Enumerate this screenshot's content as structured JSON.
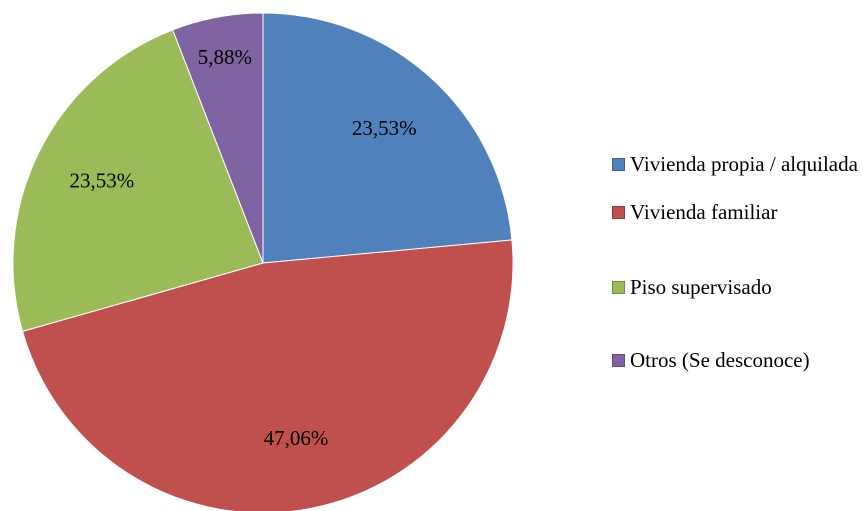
{
  "chart_data": {
    "type": "pie",
    "categories": [
      "Vivienda propia / alquilada",
      "Vivienda familiar",
      "Piso supervisado",
      "Otros (Se desconoce)"
    ],
    "values": [
      23.53,
      47.06,
      23.53,
      5.88
    ],
    "value_labels": [
      "23,53%",
      "47,06%",
      "23,53%",
      "5,88%"
    ],
    "colors": [
      "#4f81bd",
      "#c0504d",
      "#9bbb59",
      "#8064a2"
    ],
    "legend": "right"
  }
}
